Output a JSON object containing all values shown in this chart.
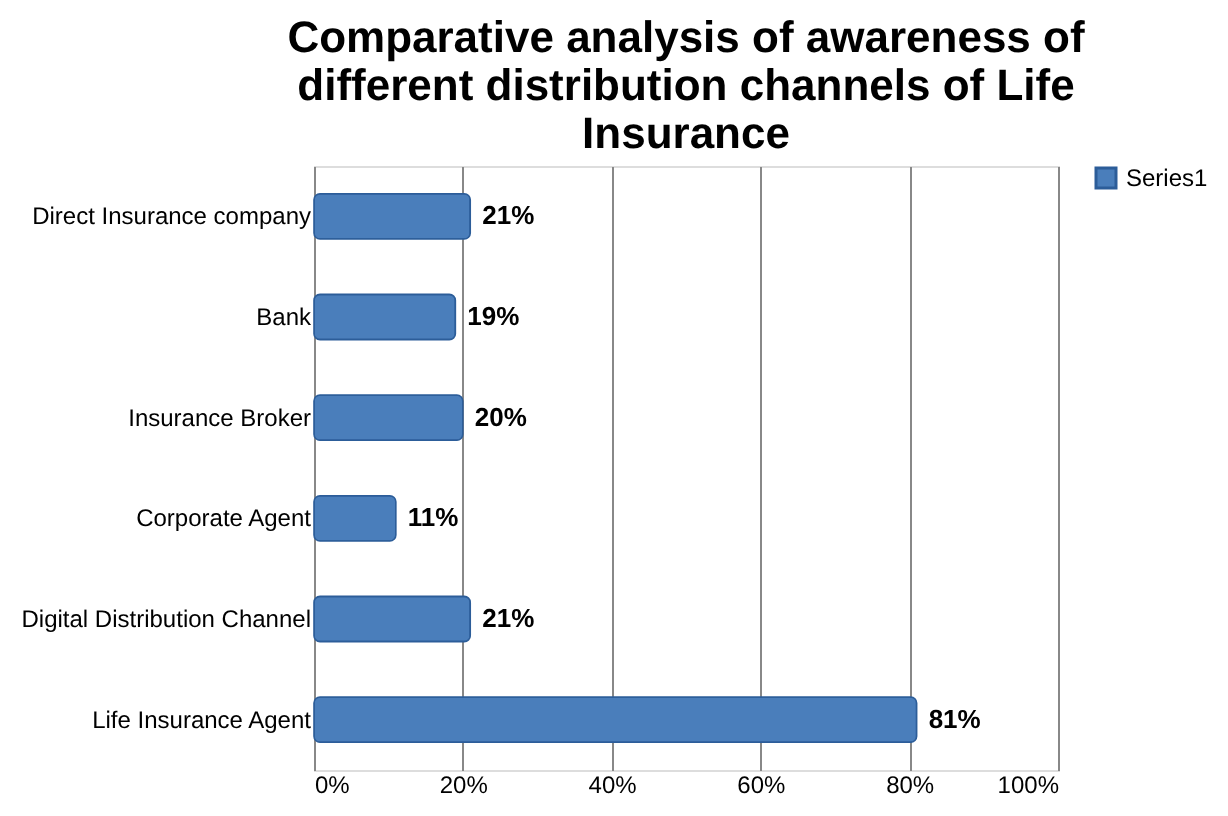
{
  "chart_data": {
    "type": "bar",
    "orientation": "horizontal",
    "title": "Comparative analysis of awareness of different distribution channels of Life Insurance",
    "categories": [
      "Direct Insurance company",
      "Bank",
      "Insurance Broker",
      "Corporate Agent",
      "Digital Distribution Channel",
      "Life Insurance Agent"
    ],
    "series": [
      {
        "name": "Series1",
        "color": "#4a7ebb",
        "values": [
          21,
          19,
          20,
          11,
          21,
          81
        ],
        "value_labels": [
          "21%",
          "19%",
          "20%",
          "11%",
          "21%",
          "81%"
        ]
      }
    ],
    "xlim": [
      0,
      100
    ],
    "xticks": [
      {
        "value": 0,
        "label": "0%"
      },
      {
        "value": 20,
        "label": "20%"
      },
      {
        "value": 40,
        "label": "40%"
      },
      {
        "value": 60,
        "label": "60%"
      },
      {
        "value": 80,
        "label": "80%"
      },
      {
        "value": 100,
        "label": "100%"
      }
    ],
    "grid": "x",
    "legend": "right"
  }
}
